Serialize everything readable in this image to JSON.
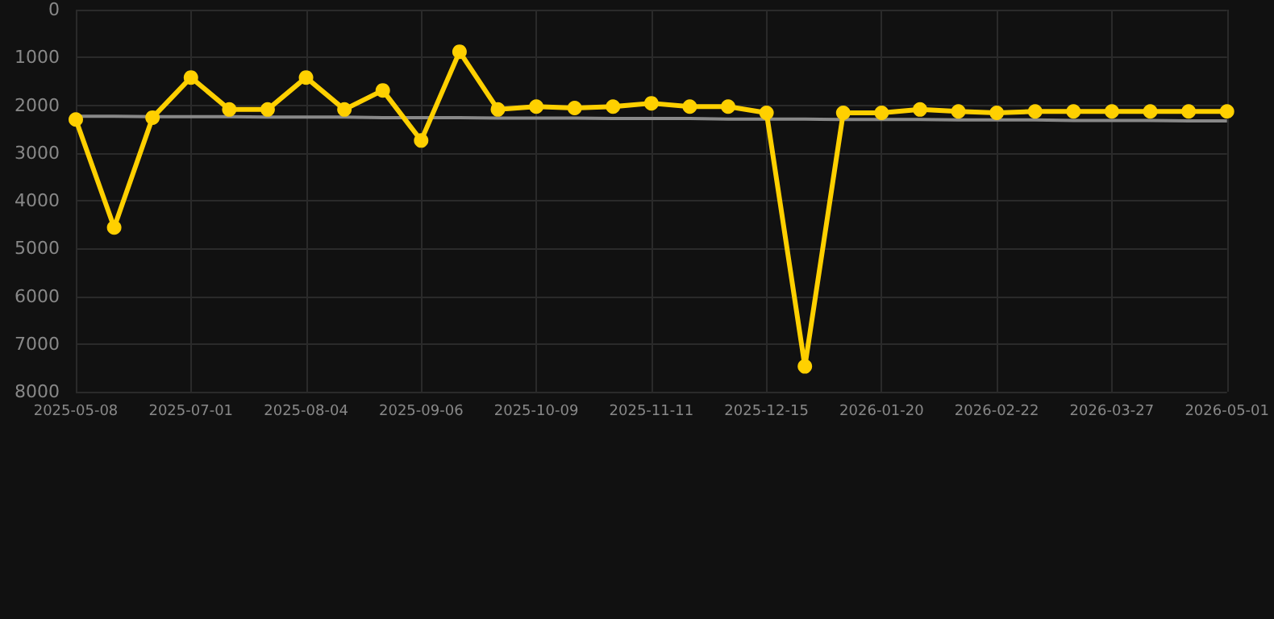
{
  "chart_data": {
    "type": "line",
    "categories": [
      "2025-05-08",
      null,
      null,
      "2025-07-01",
      null,
      null,
      "2025-08-04",
      null,
      null,
      "2025-09-06",
      null,
      null,
      "2025-10-09",
      null,
      null,
      "2025-11-11",
      null,
      null,
      "2025-12-15",
      null,
      null,
      "2026-01-20",
      null,
      null,
      "2026-02-22",
      null,
      null,
      "2026-03-27",
      null,
      null,
      "2026-05-01"
    ],
    "series": [
      {
        "color": "#ffd000",
        "marker": "circle",
        "values": [
          2300,
          4560,
          2260,
          1420,
          2090,
          2090,
          1420,
          2090,
          1690,
          2740,
          880,
          2090,
          2030,
          2060,
          2030,
          1960,
          2030,
          2030,
          2160,
          7470,
          2160,
          2160,
          2090,
          2130,
          2160,
          2130,
          2130,
          2130,
          2130,
          2130,
          2130
        ]
      },
      {
        "type": "line",
        "color": "#888888",
        "marker": "none",
        "values": [
          2230,
          2230,
          2240,
          2240,
          2240,
          2250,
          2250,
          2250,
          2260,
          2260,
          2260,
          2270,
          2270,
          2270,
          2280,
          2280,
          2280,
          2290,
          2290,
          2290,
          2300,
          2300,
          2300,
          2310,
          2310,
          2310,
          2320,
          2320,
          2320,
          2330,
          2330
        ]
      }
    ],
    "ylim": [
      8000,
      0
    ],
    "yticks": [
      0,
      1000,
      2000,
      3000,
      4000,
      5000,
      6000,
      7000,
      8000
    ],
    "grid": true
  }
}
